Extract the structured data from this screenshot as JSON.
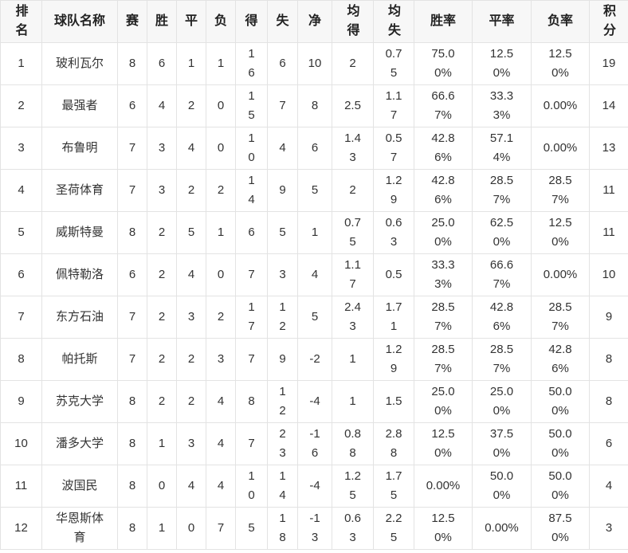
{
  "table": {
    "headers": [
      "排名",
      "球队名称",
      "赛",
      "胜",
      "平",
      "负",
      "得",
      "失",
      "净",
      "均得",
      "均失",
      "胜率",
      "平率",
      "负率",
      "积分"
    ],
    "rows": [
      [
        "1",
        "玻利瓦尔",
        "8",
        "6",
        "1",
        "1",
        "16",
        "6",
        "10",
        "2",
        "0.75",
        "75.00%",
        "12.50%",
        "12.50%",
        "19"
      ],
      [
        "2",
        "最强者",
        "6",
        "4",
        "2",
        "0",
        "15",
        "7",
        "8",
        "2.5",
        "1.17",
        "66.67%",
        "33.33%",
        "0.00%",
        "14"
      ],
      [
        "3",
        "布鲁明",
        "7",
        "3",
        "4",
        "0",
        "10",
        "4",
        "6",
        "1.43",
        "0.57",
        "42.86%",
        "57.14%",
        "0.00%",
        "13"
      ],
      [
        "4",
        "圣荷体育",
        "7",
        "3",
        "2",
        "2",
        "14",
        "9",
        "5",
        "2",
        "1.29",
        "42.86%",
        "28.57%",
        "28.57%",
        "11"
      ],
      [
        "5",
        "威斯特曼",
        "8",
        "2",
        "5",
        "1",
        "6",
        "5",
        "1",
        "0.75",
        "0.63",
        "25.00%",
        "62.50%",
        "12.50%",
        "11"
      ],
      [
        "6",
        "佩特勒洛",
        "6",
        "2",
        "4",
        "0",
        "7",
        "3",
        "4",
        "1.17",
        "0.5",
        "33.33%",
        "66.67%",
        "0.00%",
        "10"
      ],
      [
        "7",
        "东方石油",
        "7",
        "2",
        "3",
        "2",
        "17",
        "12",
        "5",
        "2.43",
        "1.71",
        "28.57%",
        "42.86%",
        "28.57%",
        "9"
      ],
      [
        "8",
        "帕托斯",
        "7",
        "2",
        "2",
        "3",
        "7",
        "9",
        "-2",
        "1",
        "1.29",
        "28.57%",
        "28.57%",
        "42.86%",
        "8"
      ],
      [
        "9",
        "苏克大学",
        "8",
        "2",
        "2",
        "4",
        "8",
        "12",
        "-4",
        "1",
        "1.5",
        "25.00%",
        "25.00%",
        "50.00%",
        "8"
      ],
      [
        "10",
        "潘多大学",
        "8",
        "1",
        "3",
        "4",
        "7",
        "23",
        "-16",
        "0.88",
        "2.88",
        "12.50%",
        "37.50%",
        "50.00%",
        "6"
      ],
      [
        "11",
        "波国民",
        "8",
        "0",
        "4",
        "4",
        "10",
        "14",
        "-4",
        "1.25",
        "1.75",
        "0.00%",
        "50.00%",
        "50.00%",
        "4"
      ],
      [
        "12",
        "华恩斯体育",
        "8",
        "1",
        "0",
        "7",
        "5",
        "18",
        "-13",
        "0.63",
        "2.25",
        "12.50%",
        "0.00%",
        "87.50%",
        "3"
      ]
    ]
  }
}
